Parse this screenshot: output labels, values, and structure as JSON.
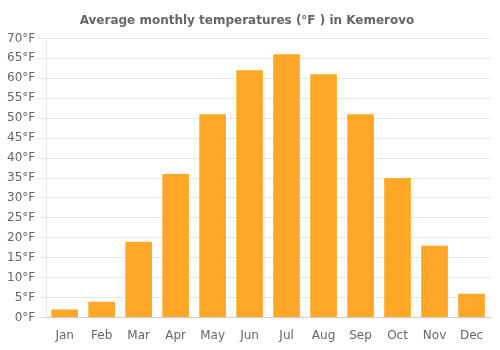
{
  "chart_data": {
    "type": "bar",
    "title": "Average monthly temperatures (°F ) in Kemerovo",
    "categories": [
      "Jan",
      "Feb",
      "Mar",
      "Apr",
      "May",
      "Jun",
      "Jul",
      "Aug",
      "Sep",
      "Oct",
      "Nov",
      "Dec"
    ],
    "values": [
      2,
      4,
      19,
      36,
      51,
      62,
      66,
      61,
      51,
      35,
      18,
      6
    ],
    "color": "#FFA726",
    "ylim": [
      0,
      70
    ],
    "yticks": [
      {
        "value": 0,
        "label": "0°F"
      },
      {
        "value": 5,
        "label": "5°F"
      },
      {
        "value": 10,
        "label": "10°F"
      },
      {
        "value": 15,
        "label": "15°F"
      },
      {
        "value": 20,
        "label": "20°F"
      },
      {
        "value": 25,
        "label": "25°F"
      },
      {
        "value": 30,
        "label": "30°F"
      },
      {
        "value": 35,
        "label": "35°F"
      },
      {
        "value": 40,
        "label": "40°F"
      },
      {
        "value": 45,
        "label": "45°F"
      },
      {
        "value": 50,
        "label": "50°F"
      },
      {
        "value": 55,
        "label": "55°F"
      },
      {
        "value": 60,
        "label": "60°F"
      },
      {
        "value": 65,
        "label": "65°F"
      },
      {
        "value": 70,
        "label": "70°F"
      }
    ],
    "grid": true
  }
}
